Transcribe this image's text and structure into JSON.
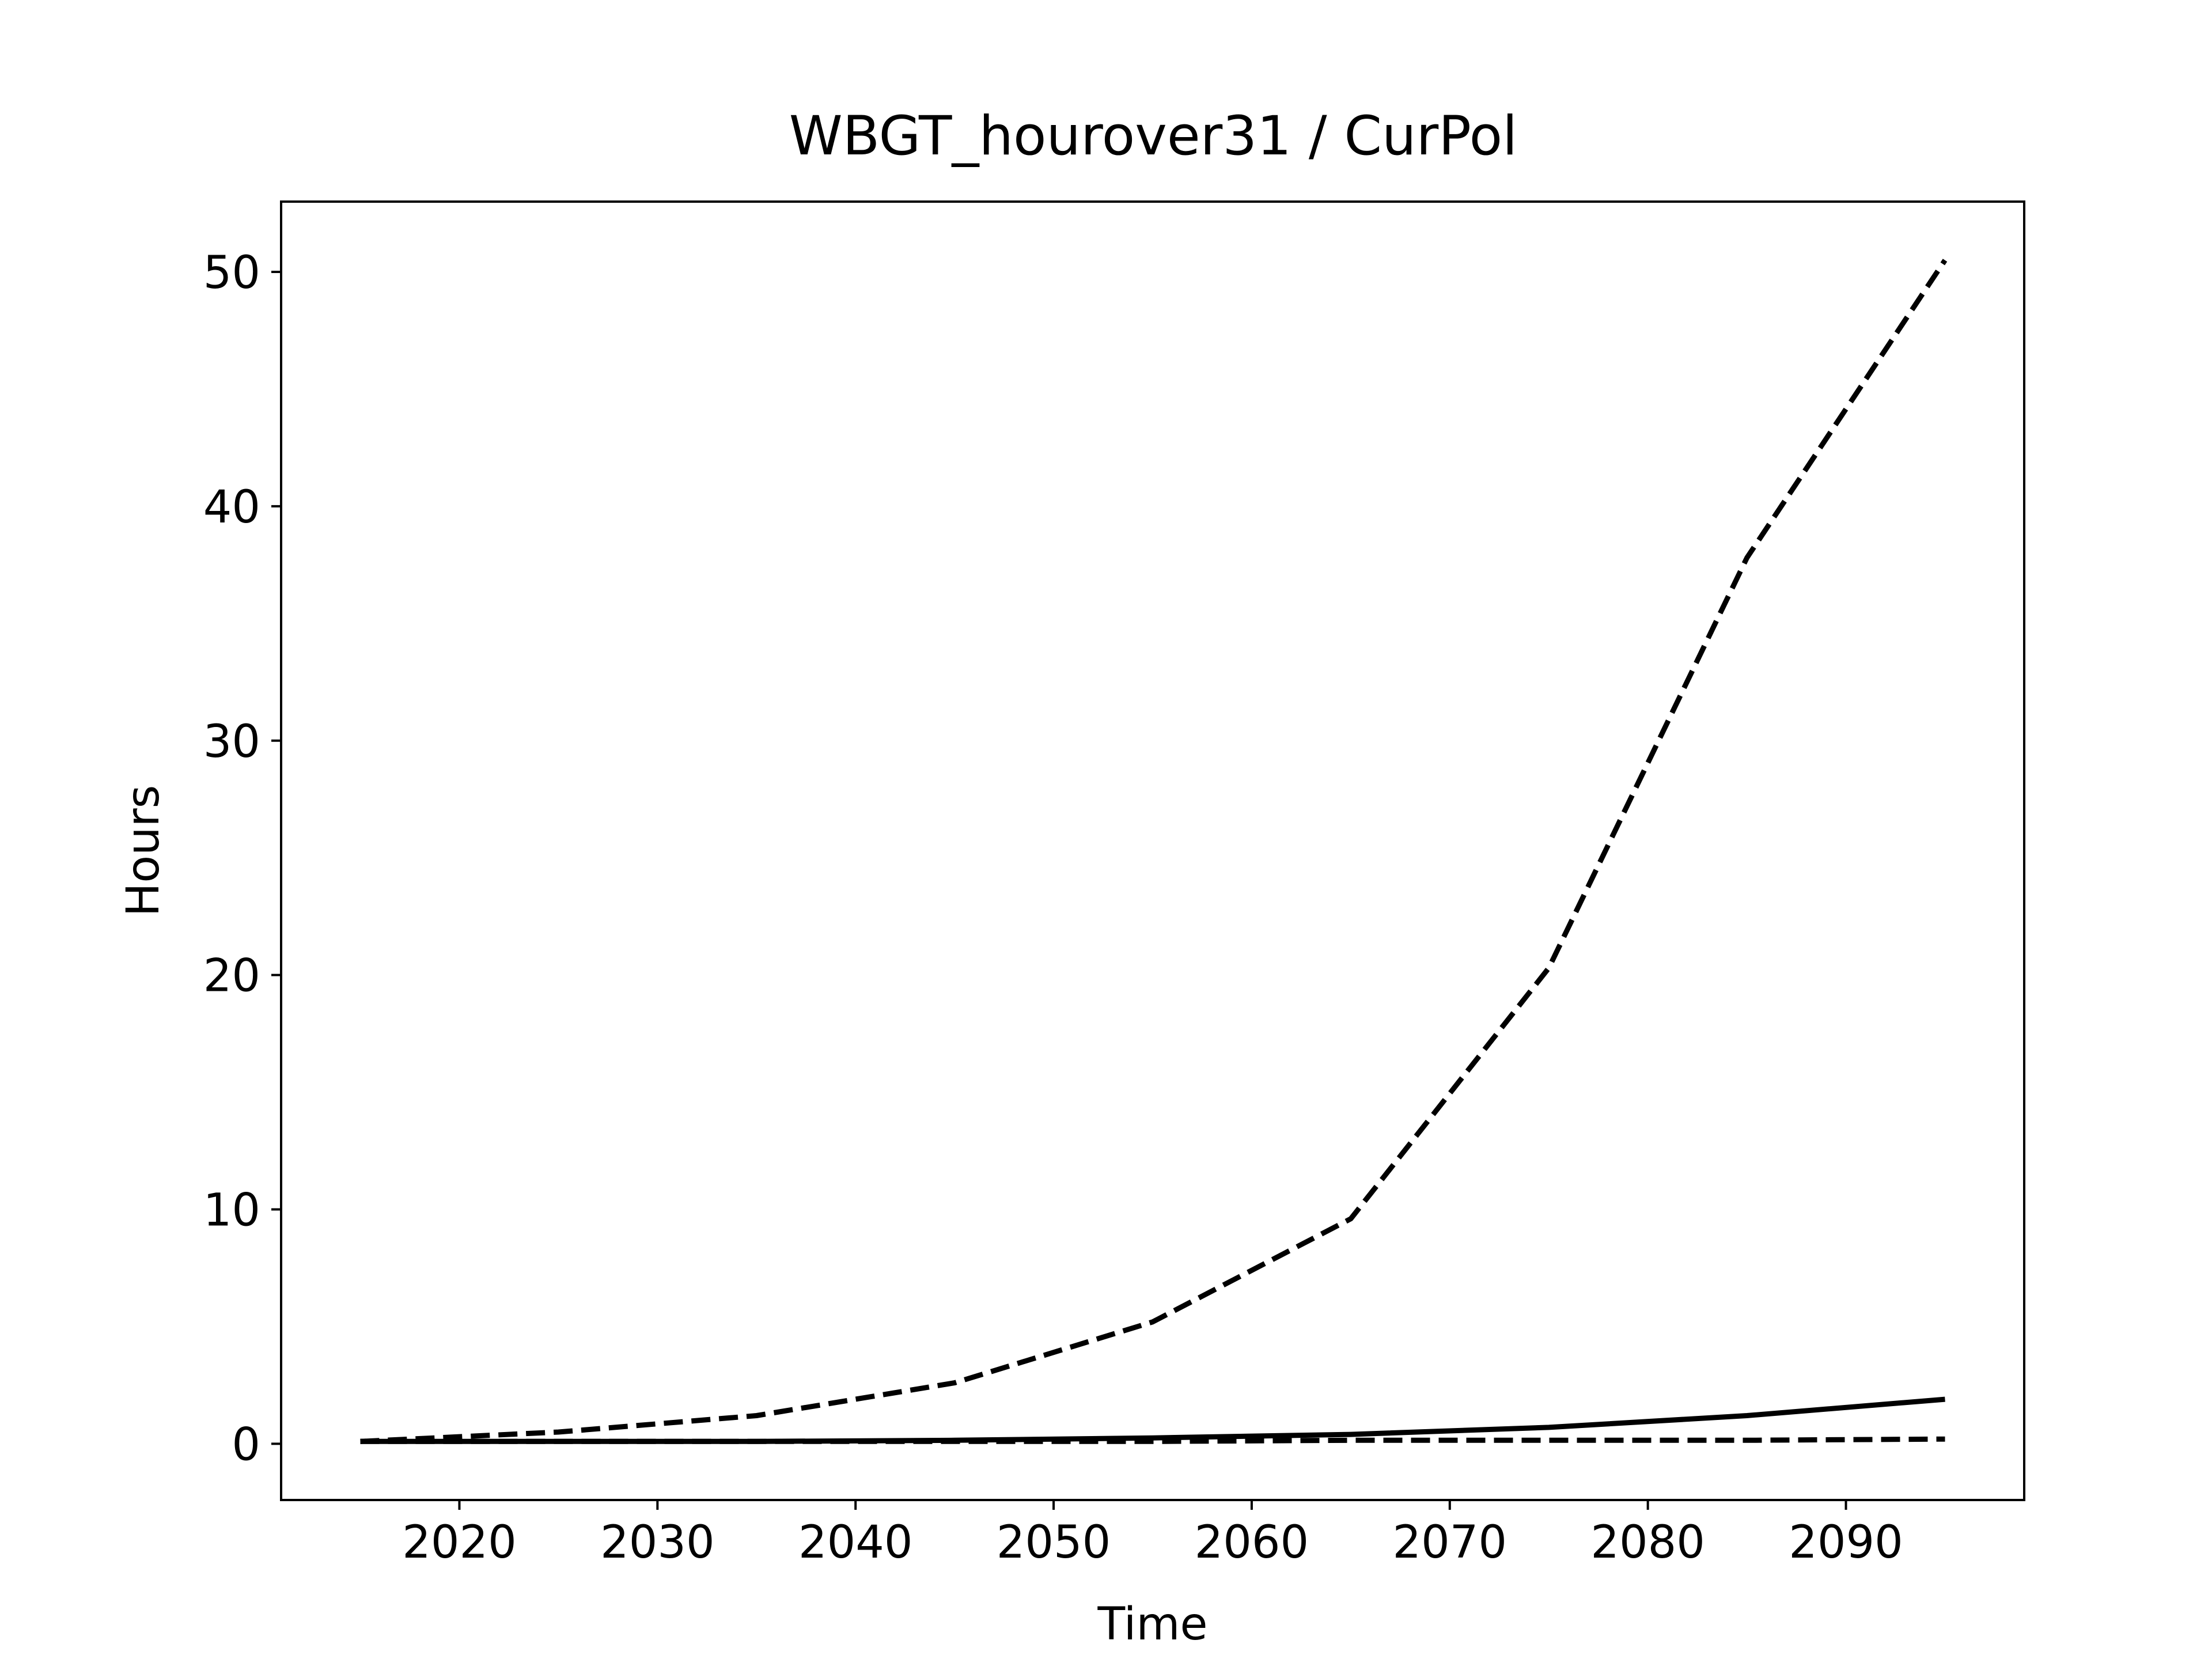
{
  "chart_data": {
    "type": "line",
    "title": "WBGT_hourover31 / CurPol",
    "xlabel": "Time",
    "ylabel": "Hours",
    "xlim": [
      2011,
      2099
    ],
    "ylim": [
      -2.4,
      53
    ],
    "xticks": [
      2020,
      2030,
      2040,
      2050,
      2060,
      2070,
      2080,
      2090
    ],
    "yticks": [
      0,
      10,
      20,
      30,
      40,
      50
    ],
    "grid": false,
    "legend": "none",
    "x": [
      2015,
      2025,
      2035,
      2045,
      2055,
      2065,
      2075,
      2085,
      2095
    ],
    "series": [
      {
        "style": "solid",
        "color": "#000000",
        "values": [
          0.1,
          0.1,
          0.1,
          0.15,
          0.25,
          0.4,
          0.7,
          1.2,
          1.9
        ]
      },
      {
        "style": "dashed",
        "color": "#000000",
        "values": [
          0.1,
          0.5,
          1.2,
          2.6,
          5.2,
          9.6,
          20.3,
          37.8,
          50.5
        ]
      },
      {
        "style": "dashed",
        "color": "#000000",
        "values": [
          0.1,
          0.1,
          0.1,
          0.1,
          0.1,
          0.15,
          0.15,
          0.15,
          0.2
        ]
      }
    ]
  }
}
